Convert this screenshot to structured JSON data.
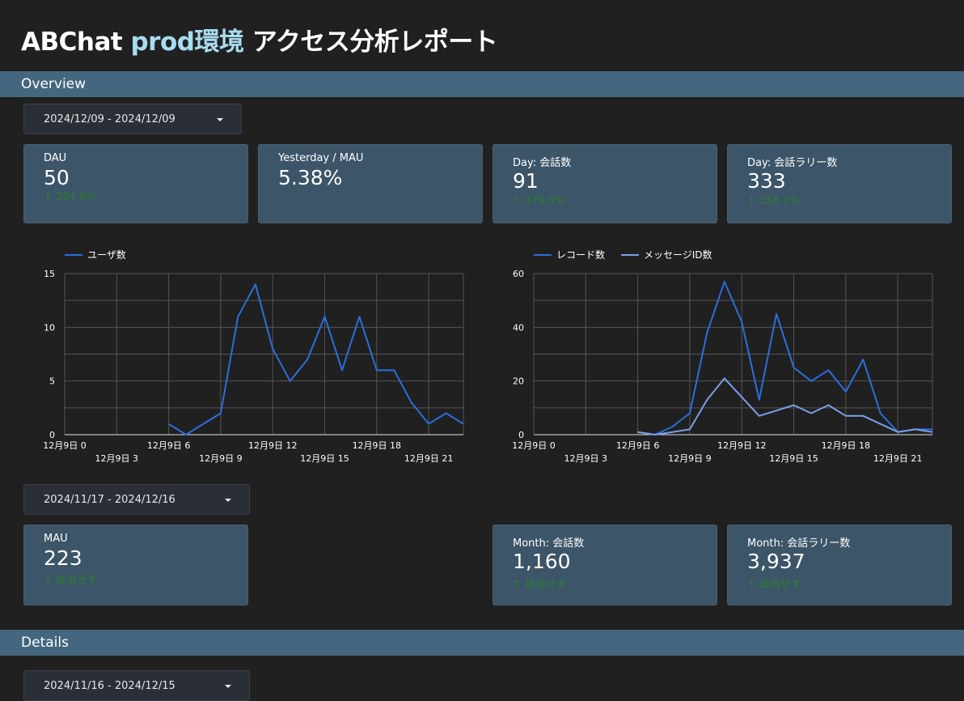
{
  "header": {
    "title_prefix": "ABChat ",
    "title_accent": "prod環境",
    "title_suffix": " アクセス分析レポート"
  },
  "sections": {
    "overview": "Overview",
    "details": "Details"
  },
  "date_ranges": {
    "daily": "2024/12/09 - 2024/12/09",
    "monthly": "2024/11/17 - 2024/12/16",
    "details": "2024/11/16 - 2024/12/15"
  },
  "scorecards_daily": [
    {
      "label": "DAU",
      "value": "50",
      "delta": "↑ 284.6%"
    },
    {
      "label": "Yesterday / MAU",
      "value": "5.38%",
      "delta": ""
    },
    {
      "label": "Day: 会話数",
      "value": "91",
      "delta": "↑ 378.9%"
    },
    {
      "label": "Day: 会話ラリー数",
      "value": "333",
      "delta": "↑ 258.1%"
    }
  ],
  "scorecards_monthly": [
    {
      "label": "MAU",
      "value": "223",
      "delta": "↑ 該当せず"
    },
    {
      "label": "Month: 会話数",
      "value": "1,160",
      "delta": "↑ 該当せず"
    },
    {
      "label": "Month: 会話ラリー数",
      "value": "3,937",
      "delta": "↑ 該当せず"
    }
  ],
  "colors": {
    "series_primary": "#2a6fdb",
    "series_secondary": "#7b9fe8",
    "delta_positive": "#2e7d32"
  },
  "chart_data": [
    {
      "type": "line",
      "x": [
        0,
        1,
        2,
        3,
        4,
        5,
        6,
        7,
        8,
        9,
        10,
        11,
        12,
        13,
        14,
        15,
        16,
        17,
        18,
        19,
        20,
        21,
        22,
        23
      ],
      "xtick_labels": [
        "12月9日 0",
        "12月9日 3",
        "12月9日 6",
        "12月9日 9",
        "12月9日 12",
        "12月9日 15",
        "12月9日 18",
        "12月9日 21"
      ],
      "xtick_values": [
        0,
        3,
        6,
        9,
        12,
        15,
        18,
        21
      ],
      "ylim": [
        0,
        15
      ],
      "yticks": [
        0,
        5,
        10,
        15
      ],
      "series": [
        {
          "name": "ユーザ数",
          "values": [
            null,
            null,
            null,
            null,
            null,
            null,
            1,
            0,
            1,
            2,
            11,
            14,
            8,
            5,
            7,
            11,
            6,
            11,
            6,
            6,
            3,
            1,
            2,
            1
          ]
        }
      ],
      "grid": true,
      "legend": "top-left"
    },
    {
      "type": "line",
      "x": [
        0,
        1,
        2,
        3,
        4,
        5,
        6,
        7,
        8,
        9,
        10,
        11,
        12,
        13,
        14,
        15,
        16,
        17,
        18,
        19,
        20,
        21,
        22,
        23
      ],
      "xtick_labels": [
        "12月9日 0",
        "12月9日 3",
        "12月9日 6",
        "12月9日 9",
        "12月9日 12",
        "12月9日 15",
        "12月9日 18",
        "12月9日 21"
      ],
      "xtick_values": [
        0,
        3,
        6,
        9,
        12,
        15,
        18,
        21
      ],
      "ylim": [
        0,
        60
      ],
      "yticks": [
        0,
        20,
        40,
        60
      ],
      "series": [
        {
          "name": "レコード数",
          "values": [
            null,
            null,
            null,
            null,
            null,
            null,
            1,
            0,
            3,
            8,
            38,
            57,
            42,
            13,
            45,
            25,
            20,
            24,
            16,
            28,
            8,
            1,
            2,
            2
          ]
        },
        {
          "name": "メッセージID数",
          "values": [
            null,
            null,
            null,
            null,
            null,
            null,
            1,
            0,
            1,
            2,
            13,
            21,
            14,
            7,
            9,
            11,
            8,
            11,
            7,
            7,
            4,
            1,
            2,
            1
          ]
        }
      ],
      "grid": true,
      "legend": "top-left"
    }
  ]
}
